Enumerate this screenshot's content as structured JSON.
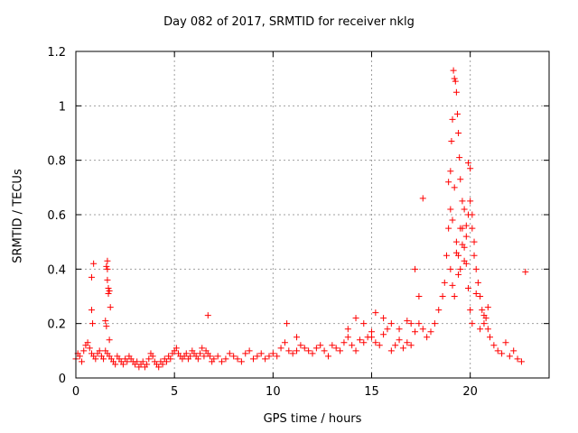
{
  "chart_data": {
    "type": "scatter",
    "title": "Day 082 of 2017, SRMTID for receiver nklg",
    "xlabel": "GPS time / hours",
    "ylabel": "SRMTID / TECUs",
    "xlim": [
      0,
      24
    ],
    "ylim": [
      0,
      1.2
    ],
    "xticks": [
      0,
      5,
      10,
      15,
      20
    ],
    "xtick_labels": [
      "0",
      "5",
      "10",
      "15",
      "20"
    ],
    "yticks": [
      0,
      0.2,
      0.4,
      0.6,
      0.8,
      1.0,
      1.2
    ],
    "ytick_labels": [
      "0",
      "0.2",
      "0.4",
      "0.6",
      "0.8",
      "1",
      "1.2"
    ],
    "grid": true,
    "marker": "+",
    "color": "#ff0000",
    "series": [
      {
        "name": "SRMTID",
        "x": [
          0.0,
          0.1,
          0.2,
          0.3,
          0.4,
          0.5,
          0.6,
          0.7,
          0.8,
          0.9,
          1.0,
          1.1,
          1.2,
          1.3,
          1.4,
          1.5,
          1.6,
          1.7,
          1.8,
          1.9,
          2.0,
          2.1,
          2.2,
          2.3,
          2.4,
          2.5,
          2.6,
          2.7,
          2.8,
          2.9,
          3.0,
          3.1,
          3.2,
          3.3,
          3.4,
          3.5,
          3.6,
          3.7,
          3.8,
          3.9,
          4.0,
          4.1,
          4.2,
          4.3,
          4.4,
          4.5,
          4.6,
          4.7,
          4.8,
          4.9,
          5.0,
          5.1,
          5.2,
          5.3,
          5.4,
          5.5,
          5.6,
          5.7,
          5.8,
          5.9,
          6.0,
          6.1,
          6.2,
          6.3,
          6.4,
          6.5,
          6.6,
          6.7,
          6.8,
          6.9,
          7.0,
          7.2,
          7.4,
          7.6,
          7.8,
          8.0,
          8.2,
          8.4,
          8.6,
          8.8,
          9.0,
          9.2,
          9.4,
          9.6,
          9.8,
          10.0,
          10.2,
          10.4,
          10.6,
          10.8,
          11.0,
          11.2,
          11.4,
          11.6,
          11.8,
          12.0,
          12.2,
          12.4,
          12.6,
          12.8,
          13.0,
          13.2,
          13.4,
          13.6,
          13.8,
          14.0,
          14.2,
          14.4,
          14.6,
          14.8,
          15.0,
          15.2,
          15.4,
          15.6,
          15.8,
          16.0,
          16.2,
          16.4,
          16.6,
          16.8,
          17.0,
          17.2,
          17.4,
          17.6,
          17.8,
          18.0,
          18.2,
          18.4,
          18.6,
          18.7,
          18.8,
          18.9,
          19.0,
          19.1,
          19.2,
          19.3,
          19.4,
          19.5,
          19.6,
          19.7,
          19.8,
          19.9,
          20.0,
          20.1,
          20.2,
          20.3,
          20.4,
          20.5,
          20.6,
          20.7,
          20.8,
          20.9,
          21.0,
          21.2,
          21.4,
          21.6,
          21.8,
          22.0,
          22.2,
          22.4,
          22.6,
          22.8,
          0.8,
          0.8,
          0.85,
          0.9,
          1.55,
          1.6,
          1.6,
          1.65,
          1.65,
          1.7,
          1.7,
          1.75,
          1.5,
          1.55,
          1.6,
          17.2,
          17.4,
          17.6,
          18.9,
          19.0,
          19.05,
          19.1,
          19.15,
          19.2,
          19.25,
          19.3,
          19.35,
          19.4,
          19.45,
          19.5,
          19.6,
          19.7,
          19.8,
          19.9,
          20.0,
          20.1,
          20.2,
          19.0,
          19.1,
          19.2,
          19.3,
          19.4,
          19.5,
          19.6,
          19.7,
          19.8,
          19.9,
          20.0,
          20.1,
          20.3,
          20.5,
          20.7,
          20.9,
          15.2,
          15.6,
          16.0,
          16.4,
          16.8,
          17.0,
          13.8,
          14.2,
          14.6,
          15.0,
          6.7,
          10.7,
          11.2
        ],
        "y": [
          0.07,
          0.09,
          0.08,
          0.06,
          0.1,
          0.12,
          0.13,
          0.11,
          0.09,
          0.08,
          0.07,
          0.09,
          0.1,
          0.08,
          0.07,
          0.1,
          0.09,
          0.08,
          0.07,
          0.06,
          0.05,
          0.08,
          0.07,
          0.06,
          0.05,
          0.07,
          0.06,
          0.08,
          0.07,
          0.06,
          0.05,
          0.06,
          0.04,
          0.05,
          0.06,
          0.04,
          0.05,
          0.07,
          0.09,
          0.08,
          0.06,
          0.05,
          0.04,
          0.06,
          0.05,
          0.07,
          0.06,
          0.08,
          0.07,
          0.09,
          0.1,
          0.11,
          0.09,
          0.08,
          0.07,
          0.08,
          0.09,
          0.07,
          0.08,
          0.1,
          0.09,
          0.08,
          0.07,
          0.09,
          0.11,
          0.08,
          0.1,
          0.09,
          0.08,
          0.06,
          0.07,
          0.08,
          0.06,
          0.07,
          0.09,
          0.08,
          0.07,
          0.06,
          0.09,
          0.1,
          0.07,
          0.08,
          0.09,
          0.07,
          0.08,
          0.09,
          0.08,
          0.11,
          0.13,
          0.1,
          0.09,
          0.1,
          0.12,
          0.11,
          0.1,
          0.09,
          0.11,
          0.12,
          0.1,
          0.08,
          0.12,
          0.11,
          0.1,
          0.13,
          0.15,
          0.12,
          0.1,
          0.14,
          0.13,
          0.15,
          0.17,
          0.13,
          0.12,
          0.16,
          0.18,
          0.1,
          0.12,
          0.14,
          0.11,
          0.13,
          0.12,
          0.17,
          0.2,
          0.18,
          0.15,
          0.17,
          0.2,
          0.25,
          0.3,
          0.35,
          0.45,
          0.55,
          0.62,
          0.58,
          0.7,
          0.5,
          0.45,
          0.4,
          0.55,
          0.48,
          0.42,
          0.6,
          0.65,
          0.55,
          0.45,
          0.4,
          0.35,
          0.3,
          0.25,
          0.2,
          0.22,
          0.18,
          0.15,
          0.12,
          0.1,
          0.09,
          0.13,
          0.08,
          0.1,
          0.07,
          0.06,
          0.39,
          0.37,
          0.25,
          0.2,
          0.42,
          0.41,
          0.43,
          0.4,
          0.33,
          0.31,
          0.32,
          0.14,
          0.26,
          0.21,
          0.19,
          0.36,
          0.4,
          0.3,
          0.66,
          0.72,
          0.76,
          0.87,
          0.95,
          1.13,
          1.1,
          1.09,
          1.05,
          0.97,
          0.9,
          0.81,
          0.73,
          0.65,
          0.62,
          0.56,
          0.79,
          0.77,
          0.6,
          0.5,
          0.4,
          0.34,
          0.3,
          0.46,
          0.38,
          0.55,
          0.49,
          0.43,
          0.52,
          0.33,
          0.25,
          0.2,
          0.31,
          0.18,
          0.23,
          0.26,
          0.24,
          0.22,
          0.2,
          0.18,
          0.21,
          0.2,
          0.18,
          0.22,
          0.2,
          0.15,
          0.23,
          0.2,
          0.15
        ]
      }
    ]
  }
}
